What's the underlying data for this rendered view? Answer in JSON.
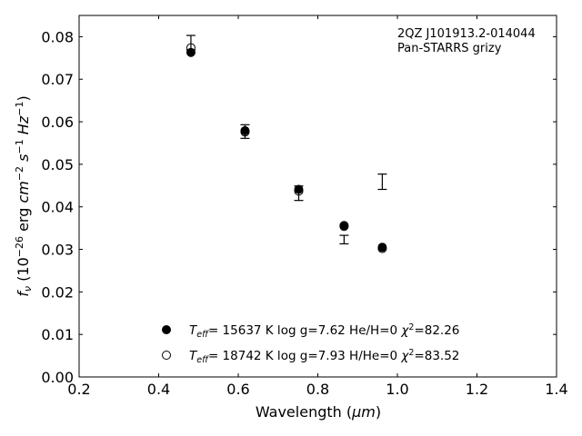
{
  "chart_data": {
    "type": "scatter",
    "xlabel_text": "Wavelength (",
    "xlabel_unit": "μm",
    "xlabel_close": ")",
    "ylabel_f": "f",
    "ylabel_sub": "ν",
    "ylabel_open": " (10",
    "ylabel_exp": "−26",
    "ylabel_erg": " erg ",
    "ylabel_cm": "cm",
    "ylabel_cm_exp": "−2",
    "ylabel_s": "s",
    "ylabel_s_exp": "−1",
    "ylabel_hz": "Hz",
    "ylabel_hz_exp": "−1",
    "ylabel_close": ")",
    "xlim": [
      0.2,
      1.4
    ],
    "ylim": [
      0.0,
      0.085
    ],
    "xticks": [
      0.2,
      0.4,
      0.6,
      0.8,
      1.0,
      1.2,
      1.4
    ],
    "xtick_labels": [
      "0.2",
      "0.4",
      "0.6",
      "0.8",
      "1.0",
      "1.2",
      "1.4"
    ],
    "yticks": [
      0.0,
      0.01,
      0.02,
      0.03,
      0.04,
      0.05,
      0.06,
      0.07,
      0.08
    ],
    "ytick_labels": [
      "0.00",
      "0.01",
      "0.02",
      "0.03",
      "0.04",
      "0.05",
      "0.06",
      "0.07",
      "0.08"
    ],
    "grid": false,
    "annotation": {
      "line1": "2QZ J101913.2-014044",
      "line2": "Pan-STARRS grizy"
    },
    "observed": {
      "x": [
        0.481,
        0.617,
        0.752,
        0.866,
        0.962
      ],
      "y": [
        0.0786,
        0.0577,
        0.0432,
        0.0323,
        0.0459
      ],
      "yerr": [
        0.0017,
        0.0016,
        0.0017,
        0.001,
        0.0018
      ]
    },
    "series": [
      {
        "marker": "filled",
        "color": "#000000",
        "legend": {
          "t_label": "T",
          "t_sub": "eff",
          "t_value": "= 15637 K  log g=7.62  He/H=0  ",
          "chi": "χ",
          "chi_exp": "2",
          "chi_value": "=82.26"
        },
        "x": [
          0.481,
          0.617,
          0.752,
          0.866,
          0.962
        ],
        "y": [
          0.0763,
          0.0579,
          0.0441,
          0.0356,
          0.0305
        ]
      },
      {
        "marker": "open",
        "color": "#000000",
        "legend": {
          "t_label": "T",
          "t_sub": "eff",
          "t_value": "= 18742 K  log g=7.93  H/He=0  ",
          "chi": "χ",
          "chi_exp": "2",
          "chi_value": "=83.52"
        },
        "x": [
          0.481,
          0.617,
          0.752,
          0.866,
          0.962
        ],
        "y": [
          0.0774,
          0.0576,
          0.0437,
          0.0354,
          0.0302
        ]
      }
    ],
    "legend_position": "lower-center"
  }
}
